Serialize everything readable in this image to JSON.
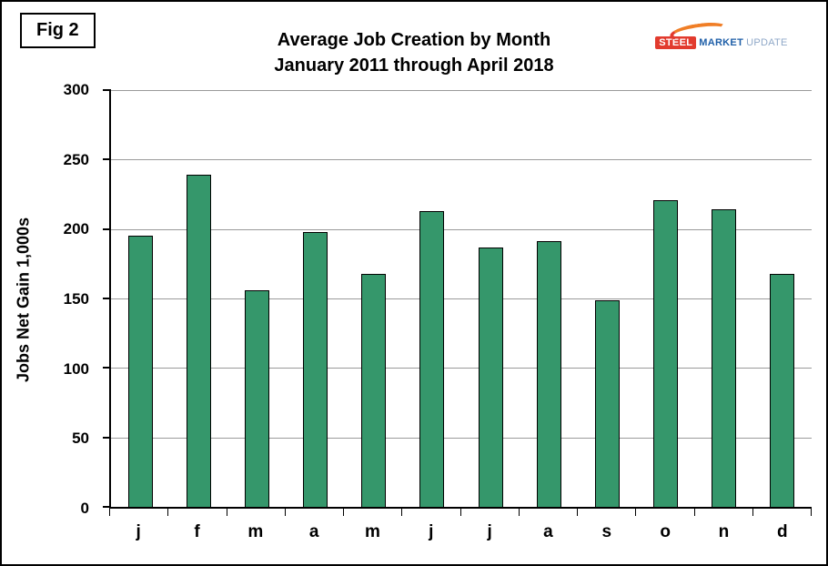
{
  "figure": {
    "label": "Fig 2"
  },
  "title": {
    "line1": "Average Job Creation by Month",
    "line2": "January 2011 through April 2018"
  },
  "logo": {
    "steel": "STEEL",
    "market": "MARKET",
    "update": "UPDATE"
  },
  "chart_data": {
    "type": "bar",
    "categories": [
      "j",
      "f",
      "m",
      "a",
      "m",
      "j",
      "j",
      "a",
      "s",
      "o",
      "n",
      "d"
    ],
    "values": [
      195,
      239,
      156,
      198,
      168,
      213,
      187,
      191,
      149,
      221,
      214,
      168
    ],
    "title": "Average Job Creation by Month — January 2011 through April 2018",
    "xlabel": "",
    "ylabel": "Jobs Net Gain 1,000s",
    "ylim": [
      0,
      300
    ],
    "yticks": [
      0,
      50,
      100,
      150,
      200,
      250,
      300
    ],
    "grid": true,
    "legend": false,
    "bar_color": "#35976b",
    "bar_border_color": "#000000",
    "gridline_color": "#9a9a9a"
  }
}
